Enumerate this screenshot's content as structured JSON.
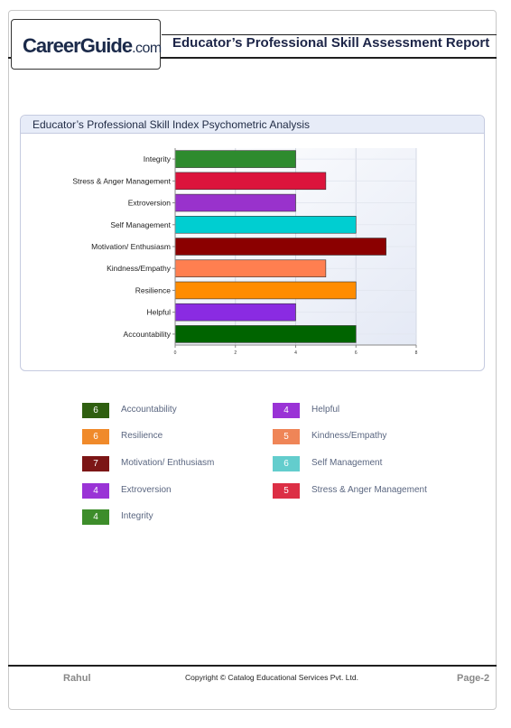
{
  "header": {
    "logo_main": "CareerGuide",
    "logo_suffix": ".com",
    "title": "Educator’s Professional Skill Assessment Report"
  },
  "panel": {
    "title": "Educator’s Professional Skill Index Psychometric Analysis"
  },
  "chart_data": {
    "type": "bar",
    "orientation": "horizontal",
    "categories": [
      "Integrity",
      "Stress & Anger Management",
      "Extroversion",
      "Self Management",
      "Motivation/ Enthusiasm",
      "Kindness/Empathy",
      "Resilience",
      "Helpful",
      "Accountability"
    ],
    "values": [
      4,
      5,
      4,
      6,
      7,
      5,
      6,
      4,
      6
    ],
    "colors": [
      "#2e8b2e",
      "#dc143c",
      "#9932cc",
      "#00ced1",
      "#8b0000",
      "#ff7f50",
      "#ff8c00",
      "#8a2be2",
      "#006400"
    ],
    "xticks": [
      "0",
      "2",
      "4",
      "6",
      "8"
    ],
    "xlim": [
      0,
      8
    ],
    "grid": true
  },
  "legend": {
    "items": [
      {
        "value": "6",
        "label": "Accountability",
        "color": "#2f5f10"
      },
      {
        "value": "4",
        "label": "Helpful",
        "color": "#9a33d6"
      },
      {
        "value": "6",
        "label": "Resilience",
        "color": "#f08a2a"
      },
      {
        "value": "5",
        "label": "Kindness/Empathy",
        "color": "#ef8557"
      },
      {
        "value": "7",
        "label": "Motivation/ Enthusiasm",
        "color": "#7c1616"
      },
      {
        "value": "6",
        "label": "Self Management",
        "color": "#63cdcd"
      },
      {
        "value": "4",
        "label": "Extroversion",
        "color": "#9a33d6"
      },
      {
        "value": "5",
        "label": "Stress & Anger Management",
        "color": "#dc2f45"
      },
      {
        "value": "4",
        "label": "Integrity",
        "color": "#3d8d2a"
      }
    ]
  },
  "footer": {
    "name": "Rahul",
    "copyright": "Copyright © Catalog Educational Services Pvt. Ltd.",
    "page": "Page-2"
  }
}
